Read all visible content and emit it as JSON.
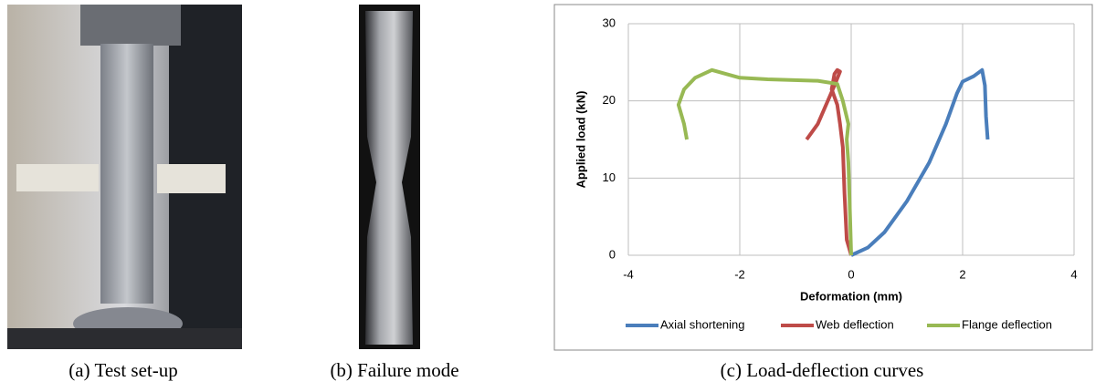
{
  "chart_data": {
    "type": "line",
    "xlabel": "Deformation (mm)",
    "ylabel": "Applied load (kN)",
    "xlim": [
      -4,
      4
    ],
    "xticks": [
      -4,
      -2,
      0,
      2,
      4
    ],
    "ylim": [
      0,
      30
    ],
    "yticks": [
      0,
      10,
      20,
      30
    ],
    "grid": true,
    "legend": "bottom",
    "series": [
      {
        "name": "Axial shortening",
        "color": "#4a7ebb",
        "x": [
          0,
          0.3,
          0.6,
          1.0,
          1.4,
          1.7,
          1.9,
          2.0,
          2.2,
          2.35,
          2.4,
          2.42,
          2.45
        ],
        "values": [
          0,
          1,
          3,
          7,
          12,
          17,
          21,
          22.5,
          23.2,
          24,
          22,
          18,
          15
        ]
      },
      {
        "name": "Web deflection",
        "color": "#be4b48",
        "x": [
          0,
          -0.08,
          -0.12,
          -0.15,
          -0.2,
          -0.25,
          -0.35,
          -0.3,
          -0.25,
          -0.2,
          -0.3,
          -0.6,
          -0.8
        ],
        "values": [
          0,
          2,
          8,
          14,
          17,
          19.5,
          21.5,
          23.5,
          24,
          23.8,
          22,
          17,
          15
        ]
      },
      {
        "name": "Flange deflection",
        "color": "#98b954",
        "x": [
          0,
          -0.02,
          -0.05,
          -0.08,
          -0.05,
          -0.15,
          -0.25,
          -0.6,
          -1.5,
          -2,
          -2.5,
          -2.8,
          -3.0,
          -3.1,
          -3.0,
          -2.95
        ],
        "values": [
          0,
          5,
          12,
          15,
          17,
          20,
          22.2,
          22.6,
          22.8,
          23,
          24,
          23,
          21.5,
          19.5,
          17,
          15
        ]
      }
    ]
  },
  "captions": [
    "(a) Test set-up",
    "(b) Failure mode",
    "(c) Load-deflection curves"
  ]
}
